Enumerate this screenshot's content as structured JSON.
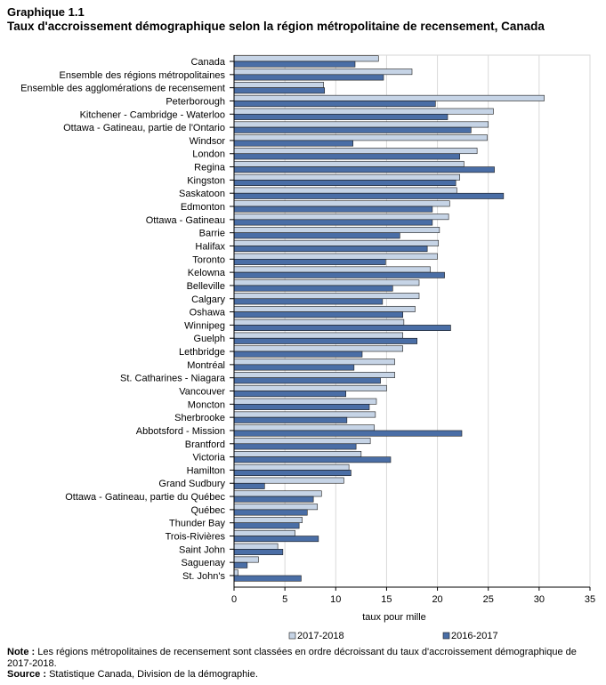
{
  "header": {
    "label": "Graphique  1.1",
    "title": "Taux d'accroissement démographique  selon la région métropolitaine  de recensement, Canada"
  },
  "chart_data": {
    "type": "bar",
    "orientation": "horizontal",
    "categories": [
      "Canada",
      "Ensemble des régions métropolitaines",
      "Ensemble des agglomérations de recensement",
      "Peterborough",
      "Kitchener - Cambridge - Waterloo",
      "Ottawa - Gatineau, partie de l'Ontario",
      "Windsor",
      "London",
      "Regina",
      "Kingston",
      "Saskatoon",
      "Edmonton",
      "Ottawa - Gatineau",
      "Barrie",
      "Halifax",
      "Toronto",
      "Kelowna",
      "Belleville",
      "Calgary",
      "Oshawa",
      "Winnipeg",
      "Guelph",
      "Lethbridge",
      "Montréal",
      "St. Catharines - Niagara",
      "Vancouver",
      "Moncton",
      "Sherbrooke",
      "Abbotsford - Mission",
      "Brantford",
      "Victoria",
      "Hamilton",
      "Grand Sudbury",
      "Ottawa - Gatineau, partie du Québec",
      "Québec",
      "Thunder Bay",
      "Trois-Rivières",
      "Saint John",
      "Saguenay",
      "St. John's"
    ],
    "series": [
      {
        "name": "2017-2018",
        "color": "#c6d4e6",
        "values": [
          14.2,
          17.5,
          8.8,
          30.5,
          25.5,
          25.0,
          24.9,
          23.9,
          22.6,
          22.2,
          21.9,
          21.2,
          21.1,
          20.2,
          20.1,
          20.0,
          19.3,
          18.2,
          18.2,
          17.8,
          16.7,
          16.6,
          16.6,
          15.8,
          15.8,
          15.0,
          14.0,
          13.9,
          13.8,
          13.4,
          12.5,
          11.3,
          10.8,
          8.6,
          8.2,
          6.7,
          6.0,
          4.3,
          2.4,
          0.4
        ]
      },
      {
        "name": "2016-2017",
        "color": "#4a6ea6",
        "values": [
          11.9,
          14.7,
          8.9,
          19.8,
          21.0,
          23.3,
          11.7,
          22.2,
          25.6,
          21.8,
          26.5,
          19.5,
          19.5,
          16.3,
          19.0,
          14.9,
          20.7,
          15.6,
          14.6,
          16.6,
          21.3,
          18.0,
          12.6,
          11.8,
          14.4,
          11.0,
          13.3,
          11.1,
          22.4,
          12.0,
          15.4,
          11.5,
          3.0,
          7.8,
          7.2,
          6.4,
          8.3,
          4.8,
          1.3,
          6.6
        ]
      }
    ],
    "xlim": [
      0,
      35
    ],
    "xticks": [
      0,
      5,
      10,
      15,
      20,
      25,
      30,
      35
    ],
    "xlabel": "taux pour mille",
    "grid": "vertical",
    "legend_position": "bottom"
  },
  "notes": {
    "note_label": "Note :",
    "note_text": "Les régions métropolitaines de recensement sont classées en ordre décroissant du taux d'accroissement démographique de 2017-2018.",
    "source_label": "Source :",
    "source_text": "Statistique Canada, Division de la démographie."
  }
}
